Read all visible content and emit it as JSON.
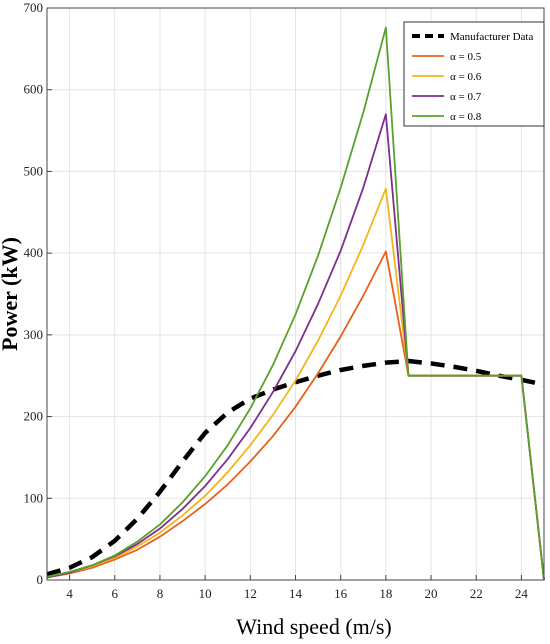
{
  "chart_data": {
    "type": "line",
    "title": "",
    "xlabel": "Wind speed (m/s)",
    "ylabel": "Power (kW)",
    "xlim": [
      3,
      25
    ],
    "ylim": [
      0,
      700
    ],
    "xticks": [
      4,
      6,
      8,
      10,
      12,
      14,
      16,
      18,
      20,
      22,
      24
    ],
    "yticks": [
      0,
      100,
      200,
      300,
      400,
      500,
      600,
      700
    ],
    "grid": true,
    "legend_position": "top-right",
    "series": [
      {
        "name": "Manufacturer Data",
        "color": "#000000",
        "style": "dashed",
        "x": [
          3,
          4,
          5,
          6,
          7,
          8,
          9,
          10,
          11,
          12,
          13,
          14,
          15,
          16,
          17,
          18,
          19,
          20,
          21,
          22,
          23,
          24,
          25
        ],
        "y": [
          7,
          15,
          28,
          48,
          75,
          108,
          145,
          180,
          205,
          222,
          233,
          242,
          250,
          257,
          262,
          266,
          268,
          265,
          261,
          256,
          250,
          245,
          239
        ]
      },
      {
        "name": "α = 0.5",
        "color": "#e8601c",
        "style": "solid",
        "x": [
          3,
          4,
          5,
          6,
          7,
          8,
          9,
          10,
          11,
          12,
          13,
          14,
          15,
          16,
          17,
          18,
          19,
          20,
          21,
          22,
          23,
          24,
          25
        ],
        "y": [
          3,
          8,
          15,
          25,
          37,
          53,
          72,
          93,
          117,
          145,
          176,
          212,
          253,
          298,
          348,
          402,
          250,
          250,
          250,
          250,
          250,
          250,
          0
        ]
      },
      {
        "name": "α = 0.6",
        "color": "#f2b51c",
        "style": "solid",
        "x": [
          3,
          4,
          5,
          6,
          7,
          8,
          9,
          10,
          11,
          12,
          13,
          14,
          15,
          16,
          17,
          18,
          19,
          20,
          21,
          22,
          23,
          24,
          25
        ],
        "y": [
          3,
          9,
          17,
          27,
          41,
          58,
          79,
          103,
          132,
          165,
          202,
          244,
          293,
          348,
          410,
          479,
          250,
          250,
          250,
          250,
          250,
          250,
          0
        ]
      },
      {
        "name": "α = 0.7",
        "color": "#7e2e8f",
        "style": "solid",
        "x": [
          3,
          4,
          5,
          6,
          7,
          8,
          9,
          10,
          11,
          12,
          13,
          14,
          15,
          16,
          17,
          18,
          19,
          20,
          21,
          22,
          23,
          24,
          25
        ],
        "y": [
          3,
          9,
          18,
          29,
          44,
          63,
          87,
          115,
          148,
          186,
          230,
          280,
          338,
          403,
          480,
          570,
          250,
          250,
          250,
          250,
          250,
          250,
          0
        ]
      },
      {
        "name": "α = 0.8",
        "color": "#5aa02c",
        "style": "solid",
        "x": [
          3,
          4,
          5,
          6,
          7,
          8,
          9,
          10,
          11,
          12,
          13,
          14,
          15,
          16,
          17,
          18,
          19,
          20,
          21,
          22,
          23,
          24,
          25
        ],
        "y": [
          4,
          10,
          18,
          30,
          47,
          68,
          95,
          127,
          165,
          210,
          263,
          325,
          397,
          480,
          572,
          676,
          250,
          250,
          250,
          250,
          250,
          250,
          0
        ]
      }
    ]
  }
}
